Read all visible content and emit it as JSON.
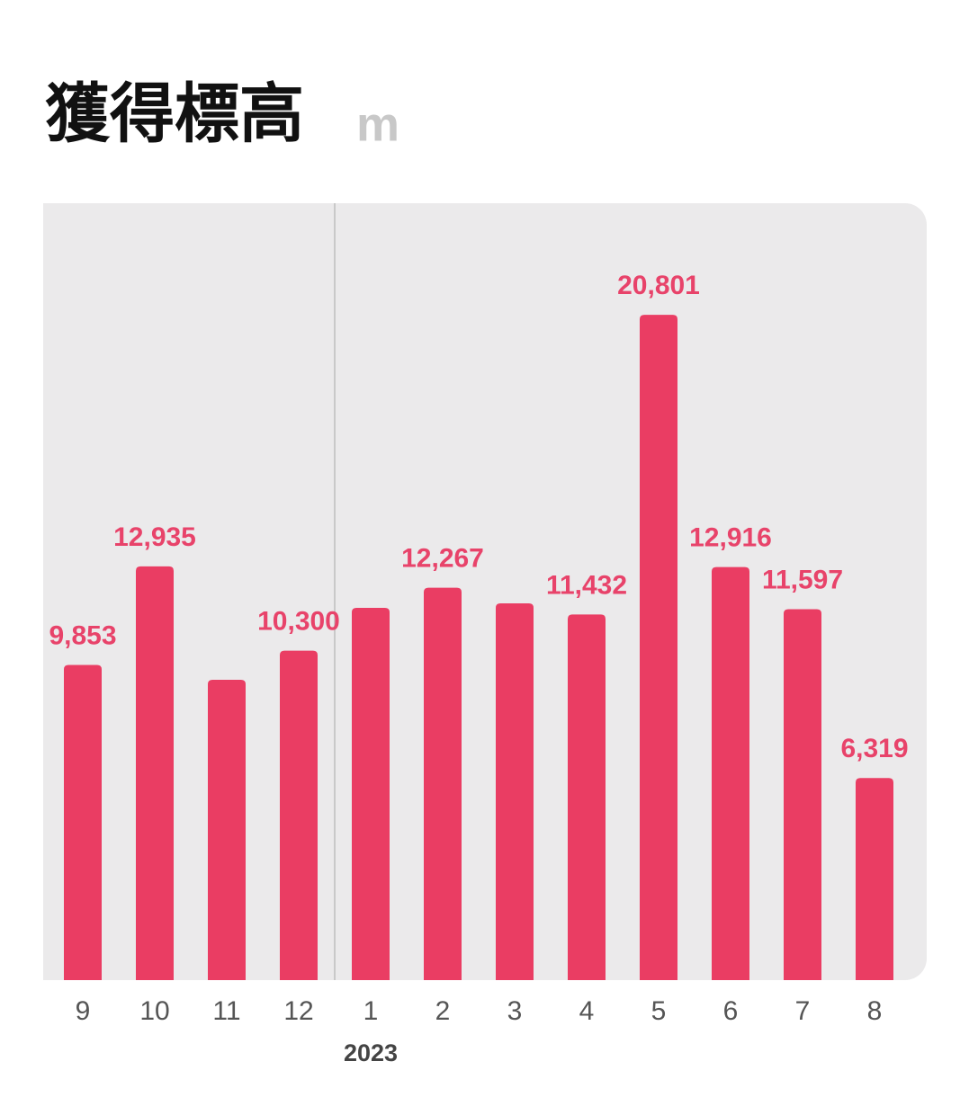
{
  "chart_data": {
    "type": "bar",
    "title": "獲得標高",
    "unit": "m",
    "categories": [
      "9",
      "10",
      "11",
      "12",
      "1",
      "2",
      "3",
      "4",
      "5",
      "6",
      "7",
      "8"
    ],
    "values": [
      9853,
      12935,
      9390,
      10300,
      11640,
      12267,
      11780,
      11432,
      20801,
      12916,
      11597,
      6319
    ],
    "value_labels": [
      "9,853",
      "12,935",
      null,
      "10,300",
      null,
      "12,267",
      null,
      "11,432",
      "20,801",
      "12,916",
      "11,597",
      "6,319"
    ],
    "color": "#ea3d63",
    "ylim": [
      0,
      24290
    ],
    "year_marks": [
      {
        "label": "2023",
        "before_category": 4
      }
    ]
  }
}
